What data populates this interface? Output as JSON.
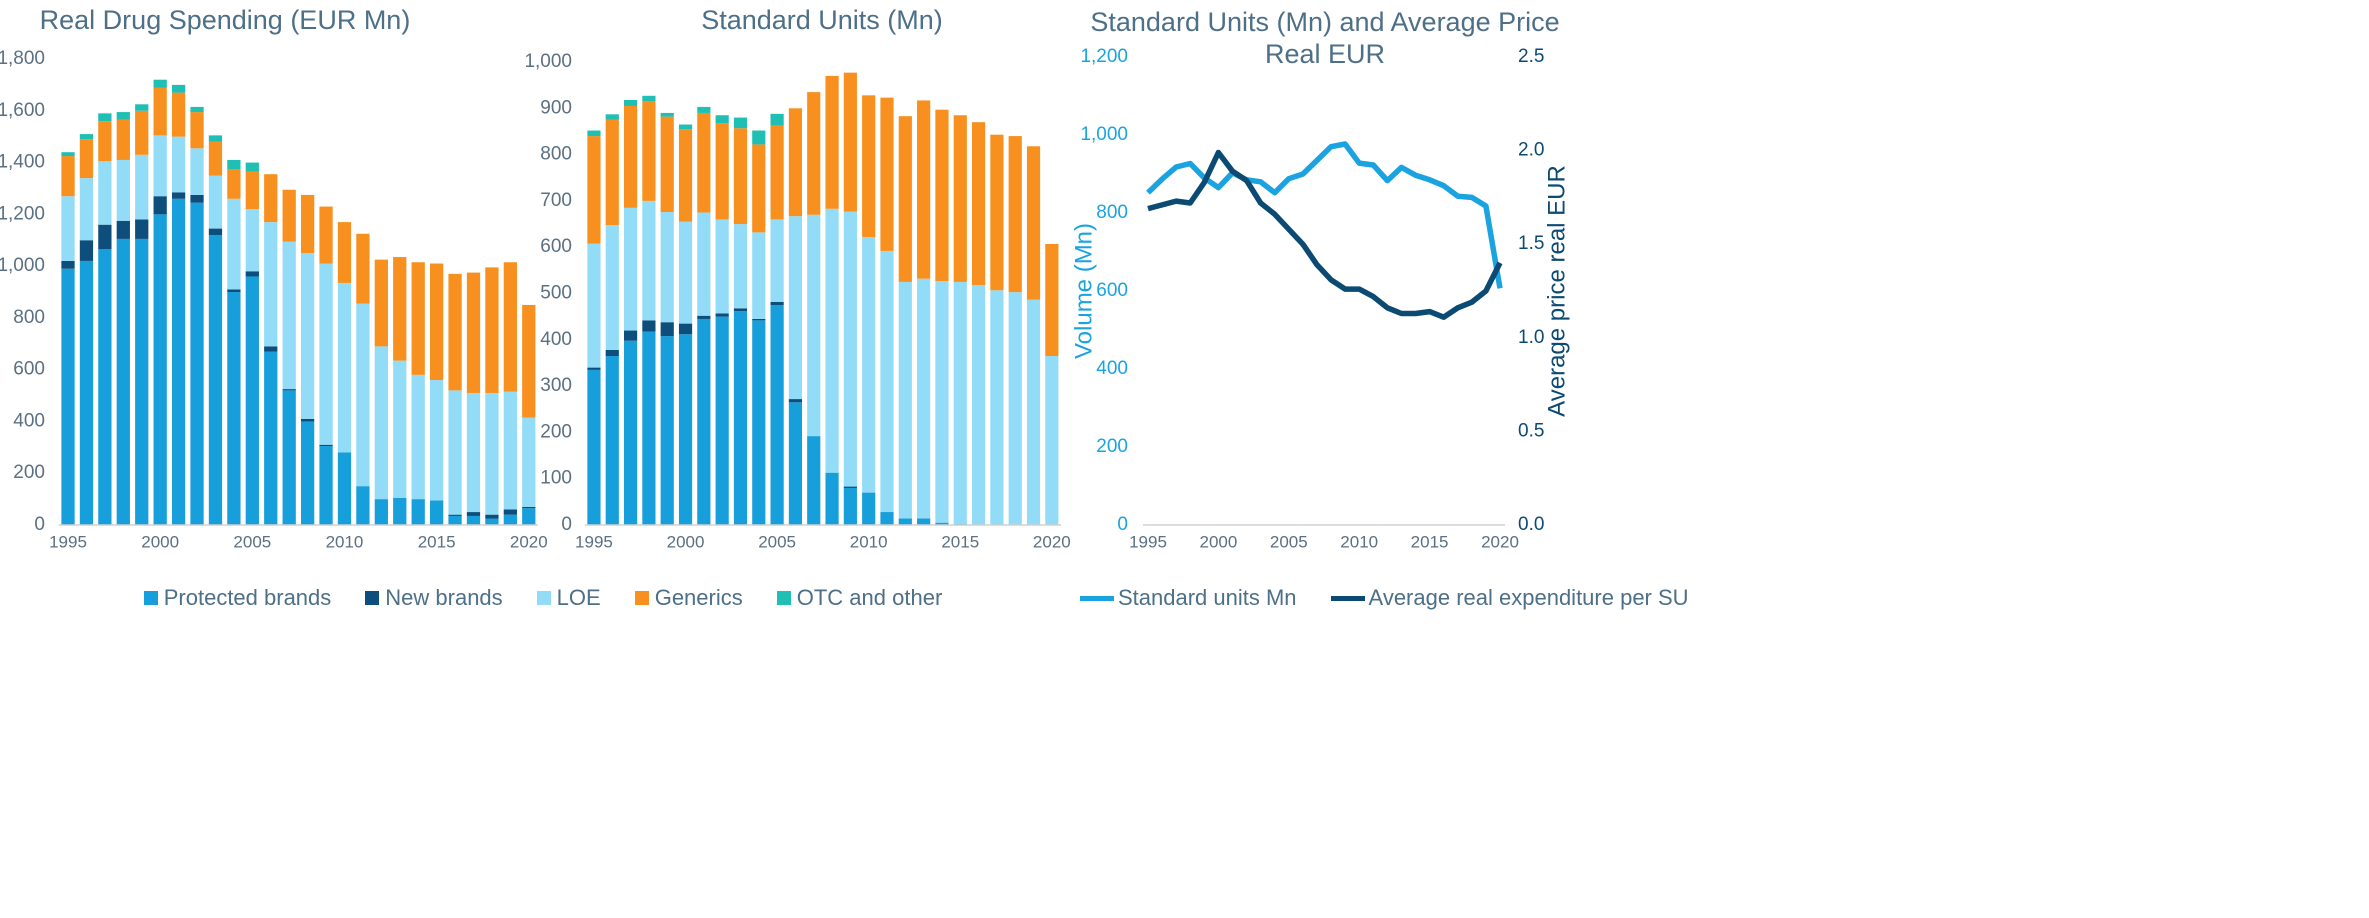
{
  "chart_data": [
    {
      "type": "stacked_bar",
      "title": "Real Drug Spending (EUR Mn)",
      "categories": [
        "1995",
        null,
        null,
        null,
        null,
        "2000",
        null,
        null,
        null,
        null,
        "2005",
        null,
        null,
        null,
        null,
        "2010",
        null,
        null,
        null,
        null,
        "2015",
        null,
        null,
        null,
        null,
        "2020"
      ],
      "ylim": [
        0,
        1800
      ],
      "yticks": [
        0,
        200,
        400,
        600,
        800,
        {
          "value": 1000,
          "label": "1,000"
        },
        {
          "value": 1200,
          "label": "1,200"
        },
        {
          "value": 1400,
          "label": "1,400"
        },
        {
          "value": 1600,
          "label": "1,600"
        },
        {
          "value": 1800,
          "label": "1,800"
        }
      ],
      "series": [
        {
          "name": "Protected brands",
          "color": "#169fdb",
          "values": [
            990,
            1020,
            1065,
            1105,
            1105,
            1200,
            1260,
            1245,
            1120,
            900,
            960,
            670,
            520,
            400,
            305,
            280,
            150,
            100,
            105,
            100,
            95,
            35,
            35,
            25,
            40,
            65
          ]
        },
        {
          "name": "New brands",
          "color": "#0d4e7d",
          "values": [
            30,
            80,
            95,
            70,
            75,
            70,
            25,
            30,
            25,
            10,
            20,
            20,
            5,
            10,
            5,
            0,
            0,
            0,
            0,
            0,
            0,
            5,
            15,
            15,
            20,
            5
          ]
        },
        {
          "name": "LOE",
          "color": "#93dcf7",
          "values": [
            250,
            240,
            245,
            235,
            250,
            235,
            215,
            180,
            205,
            350,
            240,
            480,
            570,
            640,
            700,
            655,
            705,
            590,
            530,
            480,
            465,
            480,
            460,
            470,
            455,
            345
          ]
        },
        {
          "name": "Generics",
          "color": "#f7901e",
          "values": [
            155,
            150,
            155,
            155,
            170,
            185,
            170,
            140,
            130,
            115,
            145,
            185,
            200,
            225,
            220,
            235,
            270,
            335,
            400,
            435,
            450,
            450,
            465,
            485,
            500,
            435
          ]
        },
        {
          "name": "OTC and other",
          "color": "#1fbfb4",
          "values": [
            15,
            20,
            30,
            30,
            25,
            30,
            30,
            20,
            25,
            35,
            35,
            0,
            0,
            0,
            0,
            0,
            0,
            0,
            0,
            0,
            0,
            0,
            0,
            0,
            0,
            0
          ]
        }
      ]
    },
    {
      "type": "stacked_bar",
      "title": "Standard Units (Mn)",
      "categories": [
        "1995",
        null,
        null,
        null,
        null,
        "2000",
        null,
        null,
        null,
        null,
        "2005",
        null,
        null,
        null,
        null,
        "2010",
        null,
        null,
        null,
        null,
        "2015",
        null,
        null,
        null,
        null,
        "2020"
      ],
      "ylim": [
        0,
        1000
      ],
      "yticks": [
        0,
        100,
        200,
        300,
        400,
        500,
        600,
        700,
        800,
        900,
        {
          "value": 1000,
          "label": "1,000"
        }
      ],
      "series": [
        {
          "color": "#169fdb",
          "values": [
            335,
            365,
            398,
            418,
            408,
            412,
            445,
            450,
            462,
            442,
            475,
            265,
            192,
            113,
            80,
            70,
            28,
            14,
            14,
            5,
            2,
            0,
            0,
            0,
            0,
            0
          ]
        },
        {
          "color": "#0d4e7d",
          "values": [
            5,
            13,
            22,
            24,
            30,
            23,
            7,
            7,
            6,
            3,
            7,
            7,
            0,
            0,
            3,
            0,
            0,
            0,
            0,
            0,
            0,
            0,
            0,
            0,
            0,
            0
          ]
        },
        {
          "color": "#93dcf7",
          "values": [
            268,
            270,
            265,
            258,
            238,
            220,
            223,
            203,
            182,
            187,
            178,
            395,
            478,
            570,
            594,
            552,
            564,
            511,
            518,
            522,
            523,
            518,
            507,
            503,
            487,
            365
          ]
        },
        {
          "color": "#f7901e",
          "values": [
            232,
            227,
            220,
            215,
            206,
            200,
            215,
            208,
            207,
            190,
            203,
            233,
            265,
            287,
            300,
            306,
            331,
            358,
            385,
            370,
            360,
            352,
            336,
            337,
            331,
            242
          ]
        },
        {
          "color": "#1fbfb4",
          "values": [
            12,
            12,
            13,
            12,
            8,
            10,
            13,
            17,
            23,
            30,
            25,
            0,
            0,
            0,
            0,
            0,
            0,
            0,
            0,
            0,
            0,
            0,
            0,
            0,
            0,
            0
          ]
        }
      ]
    },
    {
      "type": "line",
      "title": "Standard Units (Mn) and Average Price Real EUR",
      "categories": [
        "1995",
        null,
        null,
        null,
        null,
        "2000",
        null,
        null,
        null,
        null,
        "2005",
        null,
        null,
        null,
        null,
        "2010",
        null,
        null,
        null,
        null,
        "2015",
        null,
        null,
        null,
        null,
        "2020"
      ],
      "y_label": "Volume (Mn)",
      "y2_label": "Average price real EUR",
      "ylim": [
        0,
        1200
      ],
      "yticks": [
        0,
        200,
        400,
        600,
        800,
        {
          "value": 1000,
          "label": "1,000"
        },
        {
          "value": 1200,
          "label": "1,200"
        }
      ],
      "y2lim": [
        0,
        2.5
      ],
      "y2ticks": [
        {
          "value": 0,
          "label": "0.0"
        },
        0.5,
        {
          "value": 1,
          "label": "1.0"
        },
        1.5,
        {
          "value": 2,
          "label": "2.0"
        },
        2.5
      ],
      "series": [
        {
          "name": "Standard units Mn",
          "color": "#1aa3e0",
          "values": [
            852,
            887,
            918,
            927,
            890,
            865,
            903,
            885,
            880,
            852,
            888,
            900,
            935,
            970,
            977,
            928,
            923,
            883,
            917,
            897,
            885,
            870,
            843,
            840,
            818,
            607
          ]
        },
        {
          "name": "Average real expenditure per SU",
          "color": "#0b4a73",
          "axis": "y2",
          "values": [
            1.69,
            1.71,
            1.73,
            1.72,
            1.83,
            1.99,
            1.89,
            1.84,
            1.72,
            1.66,
            1.58,
            1.5,
            1.39,
            1.31,
            1.26,
            1.26,
            1.22,
            1.16,
            1.13,
            1.13,
            1.14,
            1.11,
            1.16,
            1.19,
            1.25,
            1.4
          ]
        }
      ]
    }
  ]
}
